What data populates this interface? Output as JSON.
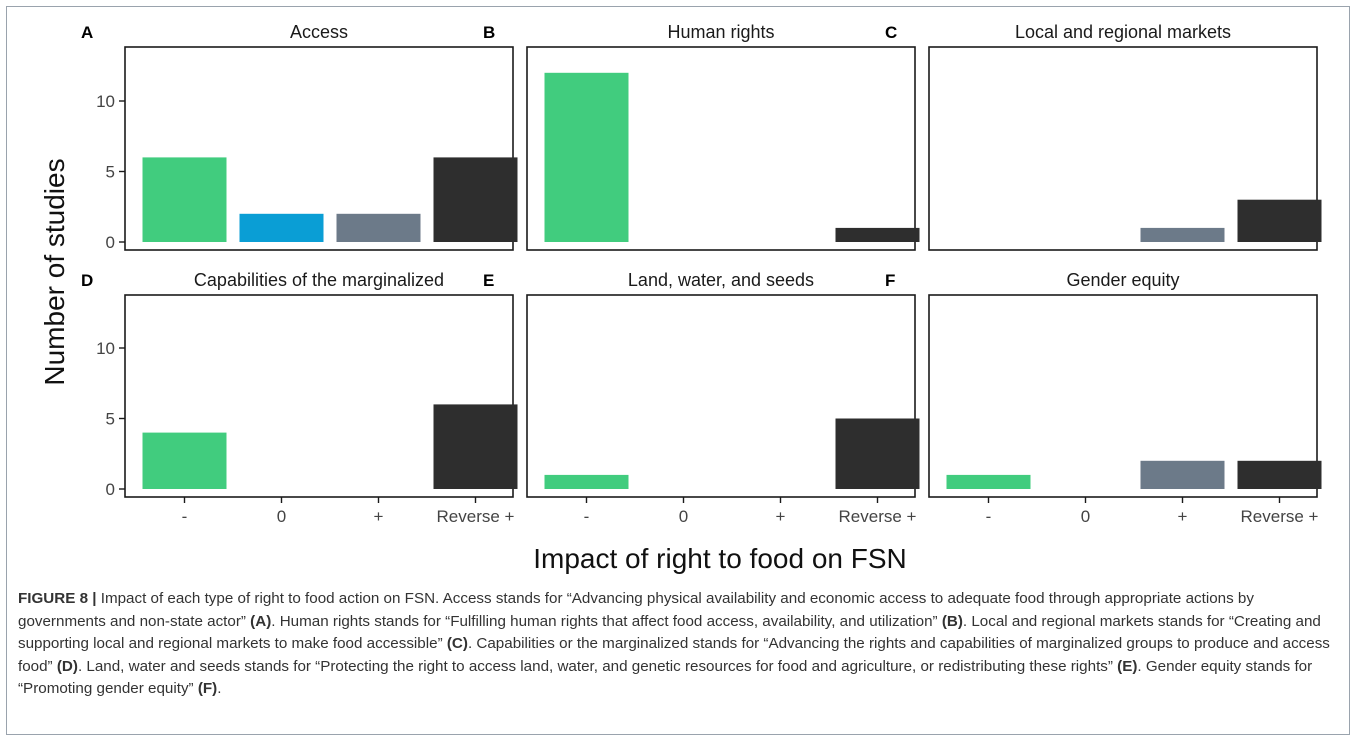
{
  "chart_data": {
    "type": "bar",
    "ylabel": "Number of studies",
    "xlabel": "Impact of right to food on FSN",
    "categories": [
      "-",
      "0",
      "+",
      "Reverse +"
    ],
    "ylim": [
      0,
      13.5
    ],
    "yticks": [
      0,
      5,
      10
    ],
    "grid": false,
    "colors": [
      "#41cc7e",
      "#0a9ed5",
      "#6c7a89",
      "#2e2e2e"
    ],
    "panels": [
      {
        "letter": "A",
        "title": "Access",
        "values": [
          6,
          2,
          2,
          6
        ]
      },
      {
        "letter": "B",
        "title": "Human rights",
        "values": [
          12,
          0,
          0,
          1
        ]
      },
      {
        "letter": "C",
        "title": "Local and regional markets",
        "values": [
          0,
          0,
          1,
          3
        ]
      },
      {
        "letter": "D",
        "title": "Capabilities of the marginalized",
        "values": [
          4,
          0,
          0,
          6
        ]
      },
      {
        "letter": "E",
        "title": "Land, water, and seeds",
        "values": [
          1,
          0,
          0,
          5
        ]
      },
      {
        "letter": "F",
        "title": "Gender equity",
        "values": [
          1,
          0,
          2,
          2
        ]
      }
    ]
  },
  "caption": {
    "lead": "FIGURE 8 |",
    "parts": [
      {
        "t": " Impact of each type of right to food action on FSN. Access stands for “Advancing physical availability and economic access to adequate food through appropriate actions by governments and non-state actor” ",
        "b": false
      },
      {
        "t": "(A)",
        "b": true
      },
      {
        "t": ". Human rights stands for “Fulfilling human rights that affect food access, availability, and utilization” ",
        "b": false
      },
      {
        "t": "(B)",
        "b": true
      },
      {
        "t": ". Local and regional markets stands for “Creating and supporting local and regional markets to make food accessible” ",
        "b": false
      },
      {
        "t": "(C)",
        "b": true
      },
      {
        "t": ". Capabilities or the marginalized stands for “Advancing the rights and capabilities of marginalized groups to produce and access food” ",
        "b": false
      },
      {
        "t": "(D)",
        "b": true
      },
      {
        "t": ". Land, water and seeds stands for “Protecting the right to access land, water, and genetic resources for food and agriculture, or redistributing these rights” ",
        "b": false
      },
      {
        "t": "(E)",
        "b": true
      },
      {
        "t": ". Gender equity stands for “Promoting gender equity” ",
        "b": false
      },
      {
        "t": "(F)",
        "b": true
      },
      {
        "t": ".",
        "b": false
      }
    ]
  }
}
